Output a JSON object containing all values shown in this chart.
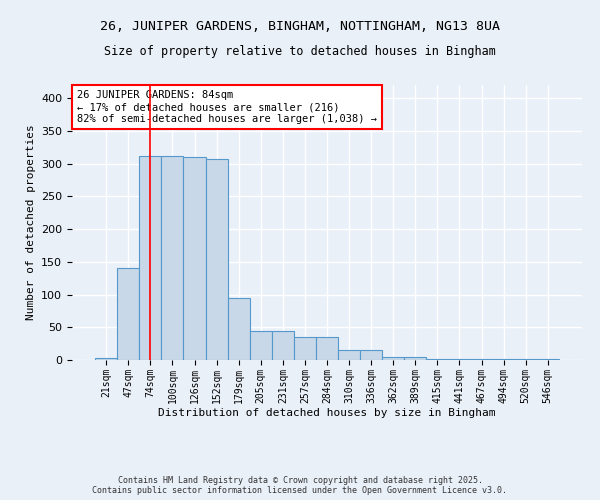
{
  "title1": "26, JUNIPER GARDENS, BINGHAM, NOTTINGHAM, NG13 8UA",
  "title2": "Size of property relative to detached houses in Bingham",
  "xlabel": "Distribution of detached houses by size in Bingham",
  "ylabel": "Number of detached properties",
  "bin_labels": [
    "21sqm",
    "47sqm",
    "74sqm",
    "100sqm",
    "126sqm",
    "152sqm",
    "179sqm",
    "205sqm",
    "231sqm",
    "257sqm",
    "284sqm",
    "310sqm",
    "336sqm",
    "362sqm",
    "389sqm",
    "415sqm",
    "441sqm",
    "467sqm",
    "494sqm",
    "520sqm",
    "546sqm"
  ],
  "bar_heights": [
    3,
    140,
    312,
    311,
    310,
    307,
    94,
    45,
    45,
    35,
    35,
    16,
    15,
    5,
    5,
    1,
    1,
    1,
    1,
    1,
    2
  ],
  "bar_color": "#c8d8e8",
  "bar_edge_color": "#5599cc",
  "red_line_x": 2,
  "annotation_text": "26 JUNIPER GARDENS: 84sqm\n← 17% of detached houses are smaller (216)\n82% of semi-detached houses are larger (1,038) →",
  "annotation_box_color": "white",
  "annotation_box_edge": "red",
  "ylim": [
    0,
    420
  ],
  "yticks": [
    0,
    50,
    100,
    150,
    200,
    250,
    300,
    350,
    400
  ],
  "footer1": "Contains HM Land Registry data © Crown copyright and database right 2025.",
  "footer2": "Contains public sector information licensed under the Open Government Licence v3.0.",
  "background_color": "#eaf0f8",
  "grid_color": "white"
}
